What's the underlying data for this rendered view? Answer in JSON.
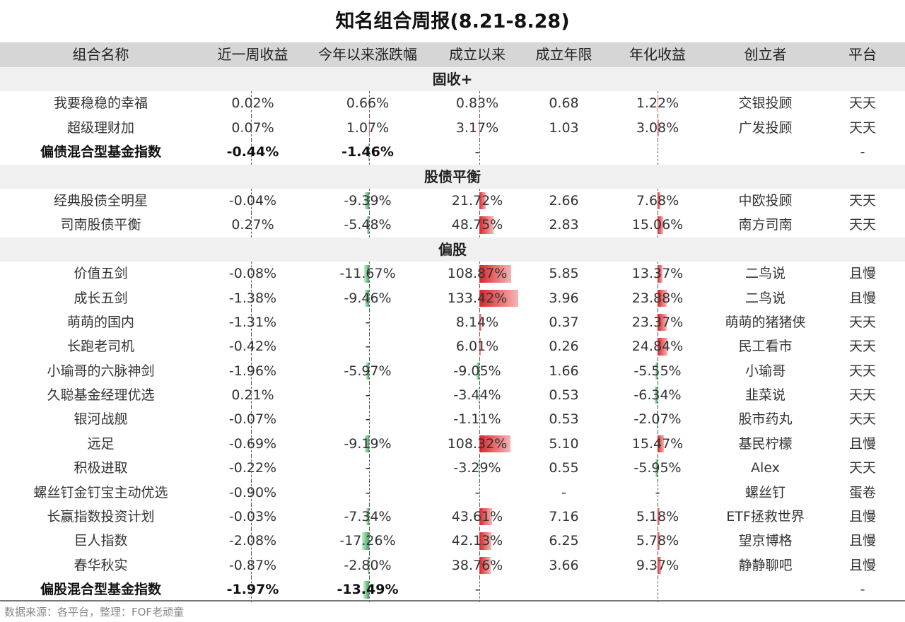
{
  "title": "知名组合周报(8.21-8.28)",
  "headers": [
    "组合名称",
    "近一周收益",
    "今年以来涨跌幅",
    "成立以来",
    "成立年限",
    "年化收益",
    "创立者",
    "平台"
  ],
  "colors": {
    "positive_bar": "#d9262a",
    "negative_bar": "#3aa75a",
    "header_bg": "#d6d6d6",
    "section_bg": "#f0f0f0"
  },
  "sections": [
    {
      "label": "固收+",
      "rows": [
        {
          "cells": [
            "我要稳稳的幸福",
            "0.02%",
            "0.66%",
            "0.83%",
            "0.68",
            "1.22%",
            "交银投顾",
            "天天"
          ]
        },
        {
          "cells": [
            "超级理财加",
            "0.07%",
            "1.07%",
            "3.17%",
            "1.03",
            "3.08%",
            "广发投顾",
            "天天"
          ]
        },
        {
          "bold": true,
          "cells": [
            "偏债混合型基金指数",
            "-0.44%",
            "-1.46%",
            "-",
            "",
            "",
            "",
            "-"
          ]
        }
      ]
    },
    {
      "label": "股债平衡",
      "rows": [
        {
          "cells": [
            "经典股债全明星",
            "-0.04%",
            "-9.39%",
            "21.72%",
            "2.66",
            "7.68%",
            "中欧投顾",
            "天天"
          ]
        },
        {
          "cells": [
            "司南股债平衡",
            "0.27%",
            "-5.48%",
            "48.75%",
            "2.83",
            "15.06%",
            "南方司南",
            "天天"
          ]
        }
      ]
    },
    {
      "label": "偏股",
      "rows": [
        {
          "cells": [
            "价值五剑",
            "-0.08%",
            "-11.67%",
            "108.87%",
            "5.85",
            "13.37%",
            "二鸟说",
            "且慢"
          ]
        },
        {
          "cells": [
            "成长五剑",
            "-1.38%",
            "-9.46%",
            "133.42%",
            "3.96",
            "23.88%",
            "二鸟说",
            "且慢"
          ]
        },
        {
          "cells": [
            "萌萌的国内",
            "-1.31%",
            "-",
            "8.14%",
            "0.37",
            "23.37%",
            "萌萌的猪猪侠",
            "天天"
          ]
        },
        {
          "cells": [
            "长跑老司机",
            "-0.42%",
            "-",
            "6.01%",
            "0.26",
            "24.84%",
            "民工看市",
            "天天"
          ]
        },
        {
          "cells": [
            "小瑜哥的六脉神剑",
            "-1.96%",
            "-5.97%",
            "-9.05%",
            "1.66",
            "-5.55%",
            "小瑜哥",
            "天天"
          ]
        },
        {
          "cells": [
            "久聪基金经理优选",
            "0.21%",
            "-",
            "-3.44%",
            "0.53",
            "-6.34%",
            "韭菜说",
            "天天"
          ]
        },
        {
          "cells": [
            "银河战舰",
            "-0.07%",
            "-",
            "-1.11%",
            "0.53",
            "-2.07%",
            "股市药丸",
            "天天"
          ]
        },
        {
          "cells": [
            "远足",
            "-0.69%",
            "-9.19%",
            "108.32%",
            "5.10",
            "15.47%",
            "基民柠檬",
            "且慢"
          ]
        },
        {
          "cells": [
            "积极进取",
            "-0.22%",
            "-",
            "-3.29%",
            "0.55",
            "-5.95%",
            "Alex",
            "天天"
          ]
        },
        {
          "cells": [
            "螺丝钉金钉宝主动优选",
            "-0.90%",
            "-",
            "-",
            "-",
            "-",
            "螺丝钉",
            "蛋卷"
          ]
        },
        {
          "cells": [
            "长赢指数投资计划",
            "-0.03%",
            "-7.34%",
            "43.61%",
            "7.16",
            "5.18%",
            "ETF拯救世界",
            "且慢"
          ]
        },
        {
          "cells": [
            "巨人指数",
            "-2.08%",
            "-17.26%",
            "42.13%",
            "6.25",
            "5.78%",
            "望京博格",
            "且慢"
          ]
        },
        {
          "cells": [
            "春华秋实",
            "-0.87%",
            "-2.80%",
            "38.76%",
            "3.66",
            "9.37%",
            "静静聊吧",
            "且慢"
          ]
        },
        {
          "bold": true,
          "cells": [
            "偏股混合型基金指数",
            "-1.97%",
            "-13.49%",
            "-",
            "",
            "",
            "",
            "-"
          ]
        }
      ]
    }
  ],
  "footer": "数据来源：各平台，整理：FOF老顽童"
}
